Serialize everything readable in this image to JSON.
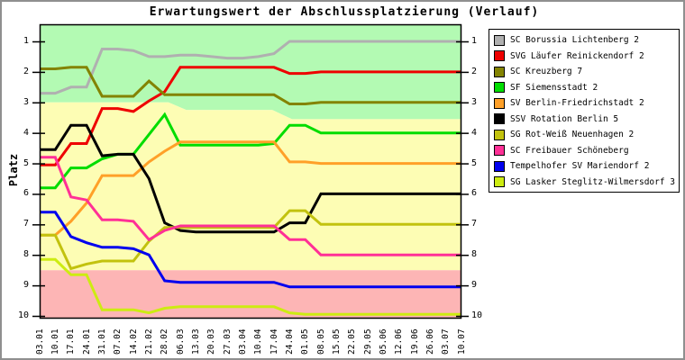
{
  "chart_data": {
    "type": "line",
    "title": "Erwartungswert der Abschlussplatzierung (Verlauf)",
    "ylabel": "Platz",
    "y_axis_inverted": true,
    "ylim": [
      1,
      10
    ],
    "y_ticks": [
      1,
      2,
      3,
      4,
      5,
      6,
      7,
      8,
      9,
      10
    ],
    "x_labels": [
      "03.01",
      "10.01",
      "17.01",
      "24.01",
      "31.01",
      "07.02",
      "14.02",
      "21.02",
      "28.02",
      "06.03",
      "13.03",
      "20.03",
      "27.03",
      "03.04",
      "10.04",
      "17.04",
      "24.04",
      "01.05",
      "08.05",
      "15.05",
      "22.05",
      "29.05",
      "05.06",
      "12.06",
      "19.06",
      "26.06",
      "03.07",
      "10.07"
    ],
    "legend_position": "outside-top-right",
    "grid": false,
    "zones": {
      "promotion_color": "#b3fab3",
      "mid_color": "#fdfdb4",
      "relegation_color": "#fdb5b5",
      "promotion_boundary_points": [
        [
          0,
          3.0
        ],
        [
          8.25,
          3.0
        ],
        [
          9.4,
          3.25
        ],
        [
          14.9,
          3.25
        ],
        [
          16.15,
          3.55
        ],
        [
          27,
          3.55
        ]
      ],
      "relegation_boundary_rank": 8.5
    },
    "series": [
      {
        "name": "SC Borussia Lichtenberg 2",
        "color": "#b0b0b0",
        "values": [
          2.7,
          2.7,
          2.5,
          2.5,
          1.25,
          1.25,
          1.3,
          1.5,
          1.5,
          1.45,
          1.45,
          1.5,
          1.55,
          1.55,
          1.5,
          1.4,
          1.0,
          1.0,
          1.0,
          1.0,
          1.0,
          1.0,
          1.0,
          1.0,
          1.0,
          1.0,
          1.0,
          1.0
        ]
      },
      {
        "name": "SVG Läufer Reinickendorf 2",
        "color": "#ee0000",
        "values": [
          5.05,
          5.05,
          4.35,
          4.35,
          3.2,
          3.2,
          3.3,
          2.95,
          2.65,
          1.85,
          1.85,
          1.85,
          1.85,
          1.85,
          1.85,
          1.85,
          2.05,
          2.05,
          2.0,
          2.0,
          2.0,
          2.0,
          2.0,
          2.0,
          2.0,
          2.0,
          2.0,
          2.0
        ]
      },
      {
        "name": "SC Kreuzberg 7",
        "color": "#838300",
        "values": [
          1.9,
          1.9,
          1.85,
          1.85,
          2.8,
          2.8,
          2.8,
          2.3,
          2.75,
          2.75,
          2.75,
          2.75,
          2.75,
          2.75,
          2.75,
          2.75,
          3.05,
          3.05,
          3.0,
          3.0,
          3.0,
          3.0,
          3.0,
          3.0,
          3.0,
          3.0,
          3.0,
          3.0
        ]
      },
      {
        "name": "SF Siemensstadt 2",
        "color": "#00dd00",
        "values": [
          5.8,
          5.8,
          5.15,
          5.15,
          4.85,
          4.7,
          4.7,
          4.05,
          3.4,
          4.4,
          4.4,
          4.4,
          4.4,
          4.4,
          4.4,
          4.35,
          3.75,
          3.75,
          4.0,
          4.0,
          4.0,
          4.0,
          4.0,
          4.0,
          4.0,
          4.0,
          4.0,
          4.0
        ]
      },
      {
        "name": "SV Berlin-Friedrichstadt 2",
        "color": "#ffa028",
        "values": [
          7.35,
          7.35,
          6.9,
          6.3,
          5.4,
          5.4,
          5.4,
          4.95,
          4.6,
          4.3,
          4.3,
          4.3,
          4.3,
          4.3,
          4.3,
          4.3,
          4.95,
          4.95,
          5.0,
          5.0,
          5.0,
          5.0,
          5.0,
          5.0,
          5.0,
          5.0,
          5.0,
          5.0
        ]
      },
      {
        "name": "SSV Rotation Berlin 5",
        "color": "#000000",
        "values": [
          4.55,
          4.55,
          3.75,
          3.75,
          4.75,
          4.7,
          4.7,
          5.5,
          6.95,
          7.2,
          7.25,
          7.25,
          7.25,
          7.25,
          7.25,
          7.25,
          6.95,
          6.95,
          6.0,
          6.0,
          6.0,
          6.0,
          6.0,
          6.0,
          6.0,
          6.0,
          6.0,
          6.0
        ]
      },
      {
        "name": "SG Rot-Weiß Neuenhagen 2",
        "color": "#c2c20e",
        "values": [
          7.35,
          7.35,
          8.45,
          8.3,
          8.2,
          8.2,
          8.2,
          7.55,
          7.1,
          7.1,
          7.1,
          7.1,
          7.1,
          7.1,
          7.1,
          7.1,
          6.55,
          6.55,
          7.0,
          7.0,
          7.0,
          7.0,
          7.0,
          7.0,
          7.0,
          7.0,
          7.0,
          7.0
        ]
      },
      {
        "name": "SC Freibauer Schöneberg",
        "color": "#ff3096",
        "values": [
          4.8,
          4.8,
          6.1,
          6.2,
          6.85,
          6.85,
          6.9,
          7.5,
          7.2,
          7.05,
          7.05,
          7.05,
          7.05,
          7.05,
          7.05,
          7.05,
          7.5,
          7.5,
          8.0,
          8.0,
          8.0,
          8.0,
          8.0,
          8.0,
          8.0,
          8.0,
          8.0,
          8.0
        ]
      },
      {
        "name": "Tempelhofer SV Mariendorf 2",
        "color": "#0000ee",
        "values": [
          6.6,
          6.6,
          7.4,
          7.6,
          7.75,
          7.75,
          7.8,
          8.0,
          8.85,
          8.9,
          8.9,
          8.9,
          8.9,
          8.9,
          8.9,
          8.9,
          9.05,
          9.05,
          9.05,
          9.05,
          9.05,
          9.05,
          9.05,
          9.05,
          9.05,
          9.05,
          9.05,
          9.05
        ]
      },
      {
        "name": "SG Lasker Steglitz-Wilmersdorf 3",
        "color": "#cdec11",
        "values": [
          8.15,
          8.15,
          8.65,
          8.65,
          9.8,
          9.8,
          9.8,
          9.9,
          9.75,
          9.7,
          9.7,
          9.7,
          9.7,
          9.7,
          9.7,
          9.7,
          9.9,
          9.95,
          9.95,
          9.95,
          9.95,
          9.95,
          9.95,
          9.95,
          9.95,
          9.95,
          9.95,
          9.95
        ]
      }
    ]
  }
}
